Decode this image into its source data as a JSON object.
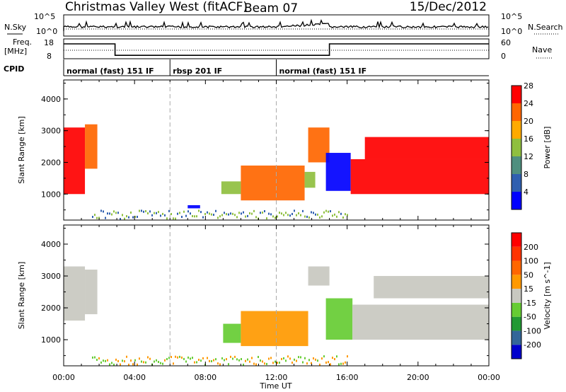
{
  "header": {
    "title": "Christmas Valley West (fitACF)",
    "beam": "Beam 07",
    "date": "15/Dec/2012"
  },
  "top_panels": {
    "nsky_label": "N.Sky",
    "nsearch_label": "N.Search",
    "count_ticks": [
      "10^5",
      "10^0"
    ],
    "freq_label_1": "Freq.",
    "freq_label_2": "[MHz]",
    "freq_ticks": [
      "18",
      "8"
    ],
    "nave_label": "Nave",
    "nave_ticks": [
      "60",
      "0"
    ],
    "cpid_label": "CPID",
    "cpid_segments": [
      {
        "label": "normal (fast) 151 IF",
        "start_h": 0,
        "end_h": 6
      },
      {
        "label": "rbsp 201 IF",
        "start_h": 6,
        "end_h": 12
      },
      {
        "label": "normal (fast) 151 IF",
        "start_h": 12,
        "end_h": 24
      }
    ],
    "freq_series": {
      "x_h": [
        0,
        2.9,
        2.9,
        15.0,
        15.0,
        24
      ],
      "mhz": [
        15.5,
        15.5,
        9.7,
        9.7,
        15.5,
        15.5
      ]
    }
  },
  "chart_data": [
    {
      "type": "heatmap",
      "parameter": "Power",
      "ylabel": "Slant Range [km]",
      "yticks": [
        "1000",
        "2000",
        "3000",
        "4000"
      ],
      "ylim": [
        180,
        4600
      ],
      "xlim_hours": [
        0,
        24
      ],
      "colorbar_label": "Power [dB]",
      "colorbar_ticks": [
        "4",
        "8",
        "12",
        "16",
        "20",
        "24",
        "28"
      ],
      "colorbar_colors": [
        "#0000ff",
        "#2f5fb0",
        "#4f8f7f",
        "#8fbf3f",
        "#ffaa00",
        "#ff6600",
        "#ff0000"
      ],
      "regions": [
        {
          "t0": 0.0,
          "t1": 1.2,
          "r0": 1000,
          "r1": 3100,
          "color": "#ff0000"
        },
        {
          "t0": 1.2,
          "t1": 1.9,
          "r0": 1800,
          "r1": 3200,
          "color": "#ff6600"
        },
        {
          "t0": 7.0,
          "t1": 7.7,
          "r0": 550,
          "r1": 650,
          "color": "#0000ff"
        },
        {
          "t0": 8.9,
          "t1": 10.0,
          "r0": 1000,
          "r1": 1400,
          "color": "#8fbf3f"
        },
        {
          "t0": 10.0,
          "t1": 13.6,
          "r0": 800,
          "r1": 1900,
          "color": "#ff6600"
        },
        {
          "t0": 13.6,
          "t1": 14.2,
          "r0": 1200,
          "r1": 1700,
          "color": "#8fbf3f"
        },
        {
          "t0": 13.8,
          "t1": 15.0,
          "r0": 2000,
          "r1": 3100,
          "color": "#ff6600"
        },
        {
          "t0": 14.8,
          "t1": 16.2,
          "r0": 1100,
          "r1": 2300,
          "color": "#0000ff"
        },
        {
          "t0": 16.2,
          "t1": 24.0,
          "r0": 1000,
          "r1": 2100,
          "color": "#ff0000"
        },
        {
          "t0": 17.0,
          "t1": 24.0,
          "r0": 2100,
          "r1": 2800,
          "color": "#ff0000"
        }
      ]
    },
    {
      "type": "heatmap",
      "parameter": "Velocity",
      "ylabel": "Slant Range [km]",
      "yticks": [
        "1000",
        "2000",
        "3000",
        "4000"
      ],
      "ylim": [
        180,
        4600
      ],
      "xlim_hours": [
        0,
        24
      ],
      "xticks": [
        "00:00",
        "04:00",
        "08:00",
        "12:00",
        "16:00",
        "20:00",
        "00:00"
      ],
      "xlabel": "Time UT",
      "colorbar_label": "Velocity [m s^-1]",
      "colorbar_ticks": [
        "200",
        "100",
        "50",
        "15",
        "-15",
        "-50",
        "-100",
        "-200"
      ],
      "colorbar_colors": [
        "#0000cc",
        "#336699",
        "#229933",
        "#66cc33",
        "#c8c8c0",
        "#ff9900",
        "#ff6600",
        "#ff3300",
        "#ff0000"
      ],
      "regions": [
        {
          "t0": 0.0,
          "t1": 1.2,
          "r0": 1600,
          "r1": 3300,
          "color": "#c8c8c0"
        },
        {
          "t0": 1.2,
          "t1": 1.9,
          "r0": 1800,
          "r1": 3200,
          "color": "#c8c8c0"
        },
        {
          "t0": 9.0,
          "t1": 10.0,
          "r0": 900,
          "r1": 1500,
          "color": "#66cc33"
        },
        {
          "t0": 10.0,
          "t1": 13.8,
          "r0": 800,
          "r1": 1900,
          "color": "#ff9900"
        },
        {
          "t0": 13.8,
          "t1": 15.0,
          "r0": 2700,
          "r1": 3300,
          "color": "#c8c8c0"
        },
        {
          "t0": 14.8,
          "t1": 16.3,
          "r0": 1000,
          "r1": 2300,
          "color": "#66cc33"
        },
        {
          "t0": 16.3,
          "t1": 24.0,
          "r0": 1000,
          "r1": 2100,
          "color": "#c8c8c0"
        },
        {
          "t0": 17.5,
          "t1": 24.0,
          "r0": 2300,
          "r1": 3000,
          "color": "#c8c8c0"
        }
      ]
    }
  ]
}
